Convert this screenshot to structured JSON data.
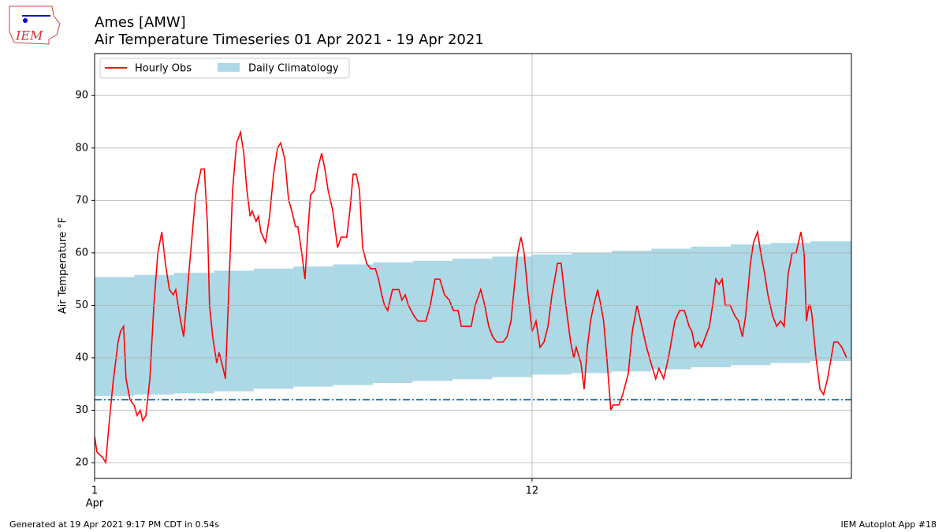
{
  "chart_data": {
    "type": "line",
    "title": "Ames [AMW]",
    "subtitle": "Air Temperature Timeseries 01 Apr 2021 - 19 Apr 2021",
    "ylabel": "Air Temperature °F",
    "x_month_label": "Apr",
    "xlim": [
      1,
      20.03
    ],
    "xticks": [
      1,
      12
    ],
    "ylim": [
      17,
      98
    ],
    "yticks": [
      20,
      30,
      40,
      50,
      60,
      70,
      80,
      90
    ],
    "grid": true,
    "legend": "upper left",
    "freezing_line": 32,
    "freezing_color": "#1f77b4",
    "series": [
      {
        "name": "Hourly Obs",
        "color": "red",
        "x": [
          1.0,
          1.06,
          1.2,
          1.28,
          1.36,
          1.46,
          1.59,
          1.65,
          1.73,
          1.79,
          1.89,
          1.99,
          2.07,
          2.15,
          2.21,
          2.29,
          2.39,
          2.49,
          2.59,
          2.69,
          2.78,
          2.88,
          2.98,
          3.04,
          3.14,
          3.24,
          3.38,
          3.54,
          3.68,
          3.76,
          3.84,
          3.89,
          3.97,
          4.07,
          4.13,
          4.23,
          4.29,
          4.37,
          4.47,
          4.57,
          4.67,
          4.75,
          4.83,
          4.91,
          4.96,
          5.06,
          5.12,
          5.18,
          5.3,
          5.4,
          5.5,
          5.6,
          5.68,
          5.78,
          5.88,
          5.96,
          6.05,
          6.11,
          6.21,
          6.29,
          6.37,
          6.43,
          6.53,
          6.61,
          6.71,
          6.79,
          6.87,
          6.99,
          7.11,
          7.2,
          7.34,
          7.42,
          7.5,
          7.58,
          7.66,
          7.74,
          7.84,
          7.94,
          8.06,
          8.14,
          8.22,
          8.29,
          8.37,
          8.49,
          8.65,
          8.73,
          8.81,
          8.89,
          9.03,
          9.13,
          9.33,
          9.44,
          9.56,
          9.68,
          9.8,
          9.92,
          10.02,
          10.14,
          10.22,
          10.36,
          10.47,
          10.57,
          10.71,
          10.81,
          10.91,
          11.01,
          11.11,
          11.27,
          11.37,
          11.47,
          11.56,
          11.64,
          11.72,
          11.8,
          11.9,
          12.0,
          12.1,
          12.2,
          12.3,
          12.4,
          12.5,
          12.64,
          12.73,
          12.85,
          12.97,
          13.05,
          13.11,
          13.23,
          13.31,
          13.39,
          13.47,
          13.55,
          13.65,
          13.73,
          13.8,
          13.88,
          13.98,
          14.04,
          14.18,
          14.28,
          14.42,
          14.52,
          14.64,
          14.76,
          14.88,
          14.99,
          15.11,
          15.19,
          15.31,
          15.43,
          15.59,
          15.71,
          15.83,
          15.95,
          16.02,
          16.1,
          16.18,
          16.26,
          16.36,
          16.46,
          16.56,
          16.62,
          16.7,
          16.78,
          16.86,
          16.98,
          17.1,
          17.19,
          17.29,
          17.37,
          17.49,
          17.57,
          17.67,
          17.75,
          17.85,
          17.93,
          18.05,
          18.15,
          18.25,
          18.34,
          18.44,
          18.54,
          18.64,
          18.76,
          18.84,
          18.9,
          18.96,
          19.0,
          19.04,
          19.14,
          19.24,
          19.33,
          19.43,
          19.59,
          19.69,
          19.79,
          19.91
        ],
        "values": [
          25,
          22,
          21,
          20,
          27,
          35,
          43,
          45,
          46,
          36,
          32,
          31,
          29,
          30,
          28,
          29,
          36,
          50,
          60,
          64,
          58,
          53,
          52,
          53,
          48,
          44,
          57,
          71,
          76,
          76,
          65,
          50,
          44,
          39,
          41,
          38,
          36,
          52,
          72,
          81,
          83,
          79,
          72,
          67,
          68,
          66,
          67,
          64,
          62,
          67,
          75,
          80,
          81,
          78,
          70,
          68,
          65,
          65,
          60,
          55,
          65,
          71,
          72,
          76,
          79,
          76,
          72,
          68,
          61,
          63,
          63,
          68,
          75,
          75,
          72,
          61,
          58,
          57,
          57,
          55,
          52,
          50,
          49,
          53,
          53,
          51,
          52,
          50,
          48,
          47,
          47,
          50,
          55,
          55,
          52,
          51,
          49,
          49,
          46,
          46,
          46,
          50,
          53,
          50,
          46,
          44,
          43,
          43,
          44,
          47,
          54,
          60,
          63,
          60,
          52,
          45,
          47,
          42,
          43,
          46,
          52,
          58,
          58,
          50,
          43,
          40,
          42,
          39,
          34,
          42,
          47,
          50,
          53,
          50,
          47,
          40,
          30,
          31,
          31,
          33,
          37,
          45,
          50,
          46,
          42,
          39,
          36,
          38,
          36,
          40,
          47,
          49,
          49,
          46,
          45,
          42,
          43,
          42,
          44,
          46,
          51,
          55,
          54,
          55,
          50,
          50,
          48,
          47,
          44,
          48,
          58,
          62,
          64,
          60,
          56,
          52,
          48,
          46,
          47,
          46,
          56,
          60,
          60,
          64,
          60,
          47,
          50,
          50,
          48,
          40,
          34,
          33,
          36,
          43,
          43,
          42,
          40
        ]
      }
    ],
    "climatology": {
      "name": "Daily Climatology",
      "color": "lightblue",
      "x": [
        1,
        2,
        3,
        4,
        5,
        6,
        7,
        8,
        9,
        10,
        11,
        12,
        13,
        14,
        15,
        16,
        17,
        18,
        19
      ],
      "low": [
        32.7,
        33.0,
        33.2,
        33.6,
        34.1,
        34.5,
        34.8,
        35.2,
        35.6,
        35.9,
        36.3,
        36.8,
        37.1,
        37.4,
        37.8,
        38.2,
        38.6,
        39.0,
        39.4
      ],
      "high": [
        55.4,
        55.8,
        56.2,
        56.6,
        57.0,
        57.4,
        57.8,
        58.2,
        58.5,
        58.9,
        59.3,
        59.7,
        60.0,
        60.4,
        60.8,
        61.2,
        61.6,
        61.9,
        62.2
      ]
    },
    "logo_text": "IEM",
    "footer_left": "Generated at 19 Apr 2021 9:17 PM CDT in 0.54s",
    "footer_right": "IEM Autoplot App #18"
  }
}
